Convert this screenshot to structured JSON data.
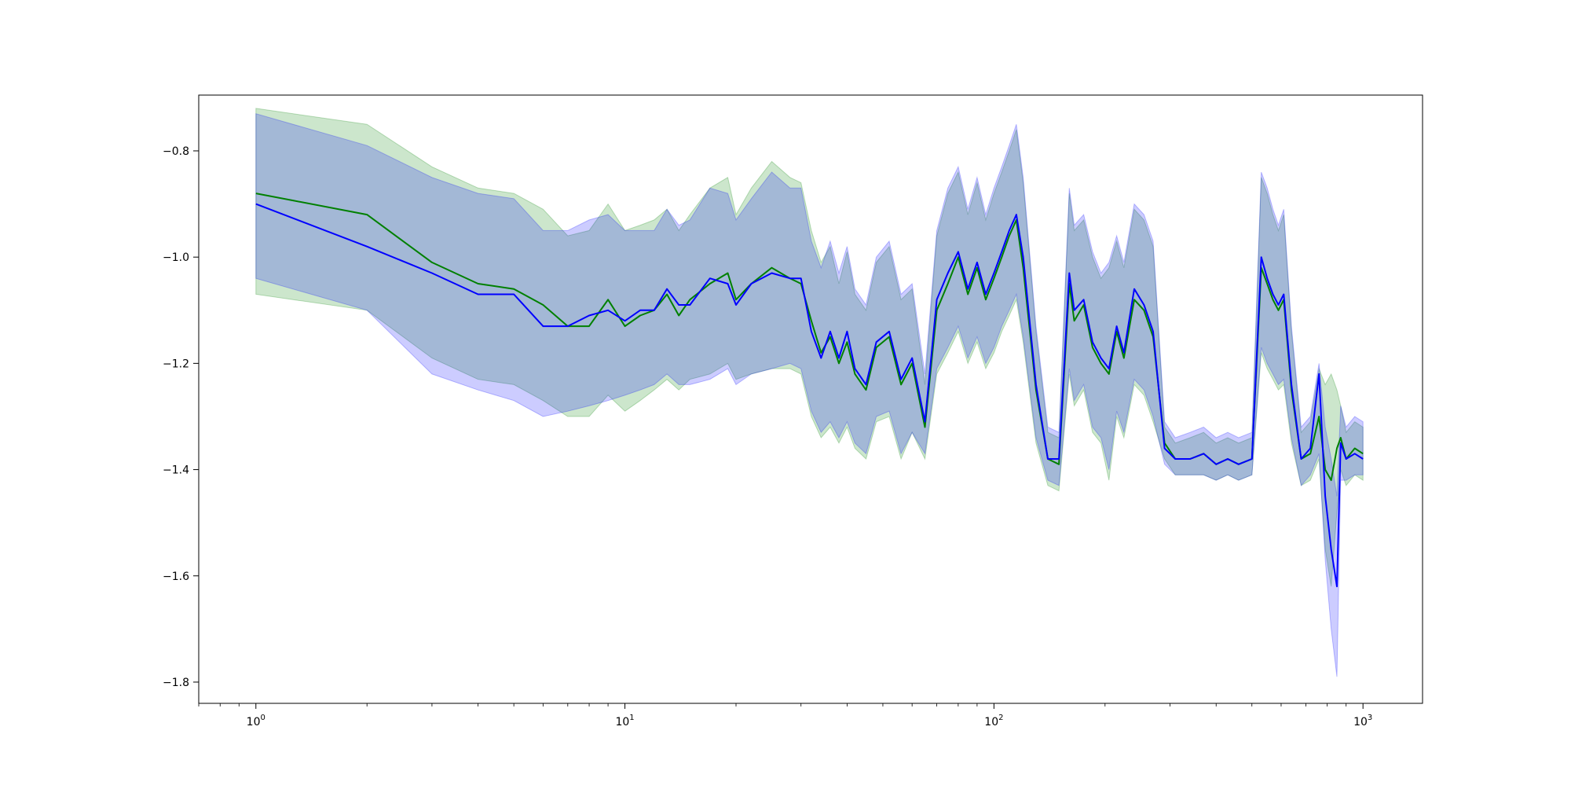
{
  "chart_data": {
    "type": "line",
    "title": "",
    "xlabel": "",
    "ylabel": "",
    "x_scale": "log",
    "xlim": [
      0.7,
      1450
    ],
    "ylim": [
      -1.84,
      -0.695
    ],
    "x_ticks": [
      {
        "value": 1,
        "label": "10^0"
      },
      {
        "value": 10,
        "label": "10^1"
      },
      {
        "value": 100,
        "label": "10^2"
      },
      {
        "value": 1000,
        "label": "10^3"
      }
    ],
    "y_ticks": [
      {
        "value": -0.8,
        "label": "−0.8"
      },
      {
        "value": -1.0,
        "label": "−1.0"
      },
      {
        "value": -1.2,
        "label": "−1.2"
      },
      {
        "value": -1.4,
        "label": "−1.4"
      },
      {
        "value": -1.6,
        "label": "−1.6"
      },
      {
        "value": -1.8,
        "label": "−1.8"
      }
    ],
    "grid": false,
    "legend": "none",
    "series": [
      {
        "color": "#008000",
        "band_color": "#008000",
        "band_opacity": 0.2,
        "x": [
          1,
          2,
          3,
          4,
          5,
          6,
          7,
          8,
          9,
          10,
          11,
          12,
          13,
          14,
          15,
          17,
          19,
          20,
          22,
          25,
          28,
          30,
          32,
          34,
          36,
          38,
          40,
          42,
          45,
          48,
          52,
          56,
          60,
          65,
          70,
          75,
          80,
          85,
          90,
          95,
          100,
          105,
          110,
          115,
          120,
          130,
          140,
          150,
          160,
          165,
          175,
          185,
          195,
          205,
          215,
          225,
          240,
          255,
          270,
          290,
          310,
          340,
          370,
          400,
          430,
          460,
          500,
          530,
          550,
          570,
          590,
          610,
          640,
          680,
          720,
          760,
          790,
          820,
          850,
          870,
          900,
          950,
          1000
        ],
        "mean": [
          -0.88,
          -0.92,
          -1.01,
          -1.05,
          -1.06,
          -1.09,
          -1.13,
          -1.13,
          -1.08,
          -1.13,
          -1.11,
          -1.1,
          -1.07,
          -1.11,
          -1.08,
          -1.05,
          -1.03,
          -1.08,
          -1.05,
          -1.02,
          -1.04,
          -1.05,
          -1.12,
          -1.18,
          -1.15,
          -1.2,
          -1.16,
          -1.22,
          -1.25,
          -1.17,
          -1.15,
          -1.24,
          -1.2,
          -1.32,
          -1.1,
          -1.05,
          -1.0,
          -1.07,
          -1.02,
          -1.08,
          -1.04,
          -1.0,
          -0.96,
          -0.93,
          -1.02,
          -1.25,
          -1.38,
          -1.39,
          -1.05,
          -1.12,
          -1.09,
          -1.17,
          -1.2,
          -1.22,
          -1.14,
          -1.19,
          -1.08,
          -1.1,
          -1.15,
          -1.35,
          -1.38,
          -1.38,
          -1.37,
          -1.39,
          -1.38,
          -1.39,
          -1.38,
          -1.02,
          -1.05,
          -1.08,
          -1.1,
          -1.08,
          -1.25,
          -1.38,
          -1.37,
          -1.3,
          -1.4,
          -1.42,
          -1.36,
          -1.34,
          -1.38,
          -1.36,
          -1.37
        ],
        "lower": [
          -1.07,
          -1.1,
          -1.19,
          -1.23,
          -1.24,
          -1.27,
          -1.3,
          -1.3,
          -1.26,
          -1.29,
          -1.27,
          -1.25,
          -1.23,
          -1.25,
          -1.23,
          -1.22,
          -1.2,
          -1.23,
          -1.22,
          -1.21,
          -1.21,
          -1.22,
          -1.3,
          -1.34,
          -1.32,
          -1.35,
          -1.32,
          -1.36,
          -1.38,
          -1.31,
          -1.3,
          -1.38,
          -1.33,
          -1.38,
          -1.22,
          -1.18,
          -1.14,
          -1.2,
          -1.16,
          -1.21,
          -1.18,
          -1.14,
          -1.11,
          -1.08,
          -1.16,
          -1.35,
          -1.43,
          -1.44,
          -1.22,
          -1.28,
          -1.25,
          -1.33,
          -1.35,
          -1.42,
          -1.3,
          -1.34,
          -1.24,
          -1.26,
          -1.31,
          -1.38,
          -1.41,
          -1.41,
          -1.41,
          -1.42,
          -1.41,
          -1.42,
          -1.41,
          -1.18,
          -1.21,
          -1.23,
          -1.25,
          -1.24,
          -1.35,
          -1.43,
          -1.42,
          -1.38,
          -1.55,
          -1.62,
          -1.48,
          -1.4,
          -1.43,
          -1.41,
          -1.42
        ],
        "upper": [
          -0.72,
          -0.75,
          -0.83,
          -0.87,
          -0.88,
          -0.91,
          -0.96,
          -0.95,
          -0.9,
          -0.95,
          -0.94,
          -0.93,
          -0.91,
          -0.95,
          -0.92,
          -0.87,
          -0.85,
          -0.92,
          -0.87,
          -0.82,
          -0.85,
          -0.86,
          -0.95,
          -1.01,
          -0.98,
          -1.05,
          -0.99,
          -1.07,
          -1.1,
          -1.01,
          -0.98,
          -1.08,
          -1.06,
          -1.24,
          -0.96,
          -0.88,
          -0.84,
          -0.92,
          -0.86,
          -0.93,
          -0.88,
          -0.84,
          -0.8,
          -0.76,
          -0.86,
          -1.14,
          -1.33,
          -1.34,
          -0.88,
          -0.95,
          -0.93,
          -1.0,
          -1.04,
          -1.02,
          -0.97,
          -1.02,
          -0.91,
          -0.93,
          -0.98,
          -1.32,
          -1.35,
          -1.34,
          -1.33,
          -1.35,
          -1.34,
          -1.35,
          -1.34,
          -0.85,
          -0.88,
          -0.92,
          -0.95,
          -0.92,
          -1.14,
          -1.33,
          -1.31,
          -1.21,
          -1.24,
          -1.22,
          -1.25,
          -1.28,
          -1.33,
          -1.31,
          -1.32
        ]
      },
      {
        "color": "#0000ff",
        "band_color": "#0000ff",
        "band_opacity": 0.2,
        "x": [
          1,
          2,
          3,
          4,
          5,
          6,
          7,
          8,
          9,
          10,
          11,
          12,
          13,
          14,
          15,
          17,
          19,
          20,
          22,
          25,
          28,
          30,
          32,
          34,
          36,
          38,
          40,
          42,
          45,
          48,
          52,
          56,
          60,
          65,
          70,
          75,
          80,
          85,
          90,
          95,
          100,
          105,
          110,
          115,
          120,
          130,
          140,
          150,
          160,
          165,
          175,
          185,
          195,
          205,
          215,
          225,
          240,
          255,
          270,
          290,
          310,
          340,
          370,
          400,
          430,
          460,
          500,
          530,
          550,
          570,
          590,
          610,
          640,
          680,
          720,
          760,
          790,
          820,
          850,
          870,
          900,
          950,
          1000
        ],
        "mean": [
          -0.9,
          -0.98,
          -1.03,
          -1.07,
          -1.07,
          -1.13,
          -1.13,
          -1.11,
          -1.1,
          -1.12,
          -1.1,
          -1.1,
          -1.06,
          -1.09,
          -1.09,
          -1.04,
          -1.05,
          -1.09,
          -1.05,
          -1.03,
          -1.04,
          -1.04,
          -1.14,
          -1.19,
          -1.14,
          -1.19,
          -1.14,
          -1.21,
          -1.24,
          -1.16,
          -1.14,
          -1.23,
          -1.19,
          -1.31,
          -1.08,
          -1.03,
          -0.99,
          -1.06,
          -1.01,
          -1.07,
          -1.03,
          -0.99,
          -0.95,
          -0.92,
          -1.0,
          -1.24,
          -1.38,
          -1.38,
          -1.03,
          -1.1,
          -1.08,
          -1.16,
          -1.19,
          -1.21,
          -1.13,
          -1.18,
          -1.06,
          -1.09,
          -1.14,
          -1.36,
          -1.38,
          -1.38,
          -1.37,
          -1.39,
          -1.38,
          -1.39,
          -1.38,
          -1.0,
          -1.04,
          -1.07,
          -1.09,
          -1.07,
          -1.24,
          -1.38,
          -1.36,
          -1.22,
          -1.45,
          -1.55,
          -1.62,
          -1.35,
          -1.38,
          -1.37,
          -1.38
        ],
        "lower": [
          -1.04,
          -1.1,
          -1.22,
          -1.25,
          -1.27,
          -1.3,
          -1.29,
          -1.28,
          -1.27,
          -1.26,
          -1.25,
          -1.24,
          -1.22,
          -1.24,
          -1.24,
          -1.23,
          -1.21,
          -1.24,
          -1.22,
          -1.21,
          -1.2,
          -1.21,
          -1.29,
          -1.33,
          -1.31,
          -1.34,
          -1.31,
          -1.35,
          -1.37,
          -1.3,
          -1.29,
          -1.37,
          -1.33,
          -1.37,
          -1.21,
          -1.17,
          -1.13,
          -1.19,
          -1.15,
          -1.2,
          -1.17,
          -1.13,
          -1.1,
          -1.07,
          -1.15,
          -1.34,
          -1.42,
          -1.43,
          -1.21,
          -1.27,
          -1.24,
          -1.32,
          -1.34,
          -1.4,
          -1.29,
          -1.33,
          -1.23,
          -1.25,
          -1.3,
          -1.39,
          -1.41,
          -1.41,
          -1.41,
          -1.42,
          -1.41,
          -1.42,
          -1.41,
          -1.17,
          -1.2,
          -1.22,
          -1.24,
          -1.23,
          -1.34,
          -1.43,
          -1.41,
          -1.37,
          -1.57,
          -1.7,
          -1.79,
          -1.42,
          -1.42,
          -1.41,
          -1.41
        ],
        "upper": [
          -0.73,
          -0.79,
          -0.85,
          -0.88,
          -0.89,
          -0.95,
          -0.95,
          -0.93,
          -0.92,
          -0.95,
          -0.95,
          -0.95,
          -0.91,
          -0.94,
          -0.93,
          -0.87,
          -0.88,
          -0.93,
          -0.89,
          -0.84,
          -0.87,
          -0.87,
          -0.97,
          -1.02,
          -0.97,
          -1.03,
          -0.98,
          -1.06,
          -1.09,
          -1.0,
          -0.97,
          -1.07,
          -1.05,
          -1.22,
          -0.95,
          -0.87,
          -0.83,
          -0.91,
          -0.85,
          -0.92,
          -0.87,
          -0.83,
          -0.79,
          -0.75,
          -0.85,
          -1.13,
          -1.32,
          -1.33,
          -0.87,
          -0.94,
          -0.92,
          -0.99,
          -1.03,
          -1.01,
          -0.96,
          -1.01,
          -0.9,
          -0.92,
          -0.97,
          -1.31,
          -1.34,
          -1.33,
          -1.32,
          -1.34,
          -1.33,
          -1.34,
          -1.33,
          -0.84,
          -0.87,
          -0.91,
          -0.94,
          -0.91,
          -1.13,
          -1.32,
          -1.3,
          -1.2,
          -1.32,
          -1.38,
          -1.45,
          -1.28,
          -1.32,
          -1.3,
          -1.31
        ]
      }
    ]
  }
}
